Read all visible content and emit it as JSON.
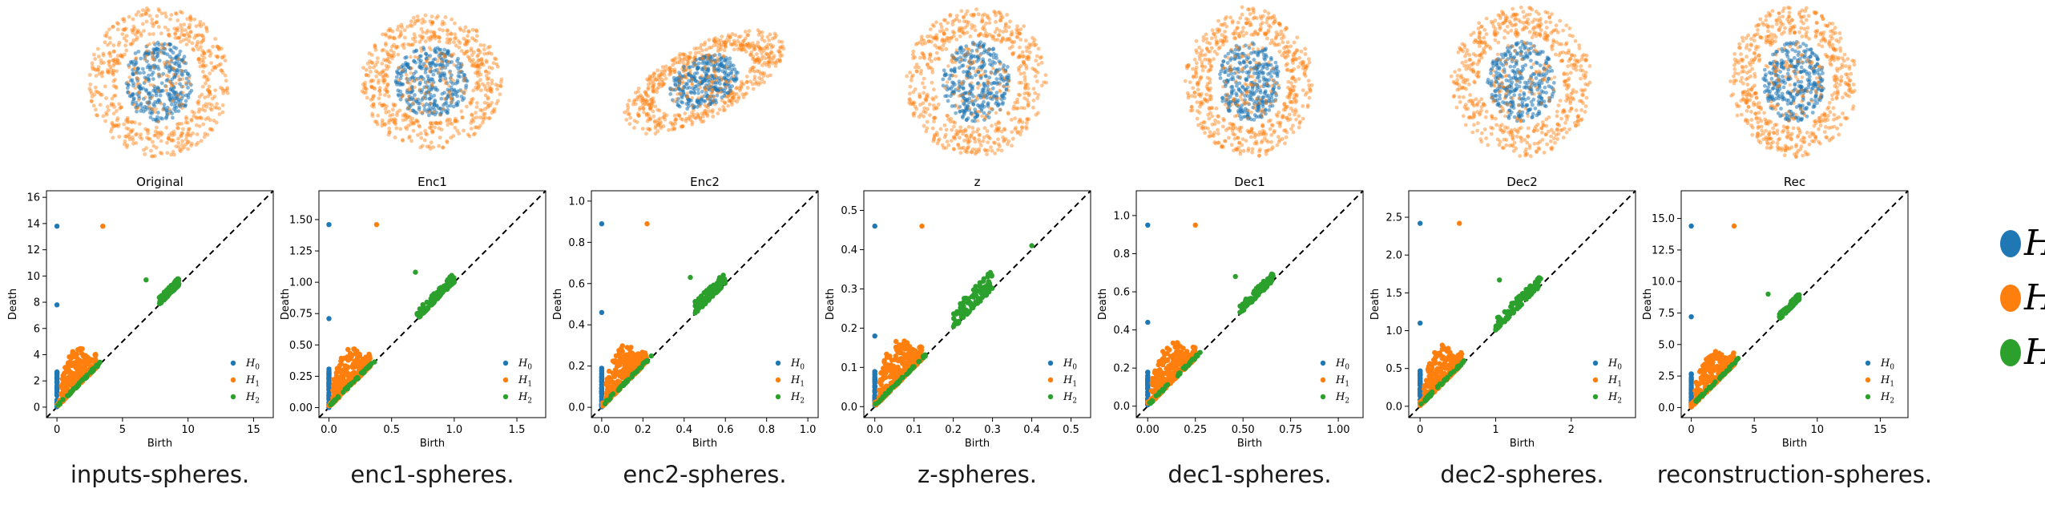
{
  "colors": {
    "h0": "#1f77b4",
    "h1": "#ff7f0e",
    "h2": "#2ca02c",
    "axis": "#000000"
  },
  "axis_labels": {
    "xlabel": "Birth",
    "ylabel": "Death"
  },
  "legend_labels": [
    "H0",
    "H1",
    "H2"
  ],
  "panels": [
    {
      "title": "Original",
      "caption": "inputs-spheres.",
      "cloud_shape": "round",
      "chart_data": {
        "type": "scatter",
        "title": "Original",
        "xlabel": "Birth",
        "ylabel": "Death",
        "xlim": [
          -0.8,
          16.5
        ],
        "ylim": [
          -0.8,
          16.5
        ],
        "xticks": [
          0,
          5,
          10,
          15
        ],
        "yticks": [
          0,
          2,
          4,
          6,
          8,
          10,
          12,
          14,
          16
        ],
        "scale_max": 16,
        "legend": "lower-right",
        "diagonal": "dashed",
        "series": [
          {
            "name": "H0",
            "points": [
              [
                0,
                13.8
              ],
              [
                0,
                7.8
              ]
            ],
            "cluster_range": [
              0,
              2.7
            ]
          },
          {
            "name": "H1",
            "points": [
              [
                3.5,
                13.8
              ]
            ],
            "cluster": {
              "x0": 0.3,
              "x1": 3.0,
              "max_rise": 3.2
            }
          },
          {
            "name": "H2",
            "points": [
              [
                6.8,
                9.7
              ]
            ],
            "cluster": {
              "x0": 7.8,
              "x1": 9.3,
              "max_rise": 0.6
            }
          }
        ]
      }
    },
    {
      "title": "Enc1",
      "caption": "enc1-spheres.",
      "cloud_shape": "round",
      "chart_data": {
        "type": "scatter",
        "title": "Enc1",
        "xlabel": "Birth",
        "ylabel": "Death",
        "xlim": [
          -0.08,
          1.73
        ],
        "ylim": [
          -0.08,
          1.73
        ],
        "xticks": [
          0.0,
          0.5,
          1.0,
          1.5
        ],
        "yticks": [
          0.0,
          0.25,
          0.5,
          0.75,
          1.0,
          1.25,
          1.5
        ],
        "scale_max": 1.6,
        "legend": "lower-right",
        "diagonal": "dashed",
        "series": [
          {
            "name": "H0",
            "points": [
              [
                0,
                1.46
              ],
              [
                0,
                0.71
              ]
            ],
            "cluster_range": [
              0,
              0.31
            ]
          },
          {
            "name": "H1",
            "points": [
              [
                0.38,
                1.46
              ]
            ],
            "cluster": {
              "x0": 0.03,
              "x1": 0.33,
              "max_rise": 0.32
            }
          },
          {
            "name": "H2",
            "points": [
              [
                0.69,
                1.08
              ]
            ],
            "cluster": {
              "x0": 0.7,
              "x1": 1.0,
              "max_rise": 0.08
            }
          }
        ]
      }
    },
    {
      "title": "Enc2",
      "caption": "enc2-spheres.",
      "cloud_shape": "tilted",
      "chart_data": {
        "type": "scatter",
        "title": "Enc2",
        "xlabel": "Birth",
        "ylabel": "Death",
        "xlim": [
          -0.05,
          1.05
        ],
        "ylim": [
          -0.05,
          1.05
        ],
        "xticks": [
          0.0,
          0.2,
          0.4,
          0.6,
          0.8,
          1.0
        ],
        "yticks": [
          0.0,
          0.2,
          0.4,
          0.6,
          0.8,
          1.0
        ],
        "scale_max": 1.0,
        "legend": "lower-right",
        "diagonal": "dashed",
        "series": [
          {
            "name": "H0",
            "points": [
              [
                0,
                0.89
              ],
              [
                0,
                0.46
              ]
            ],
            "cluster_range": [
              0,
              0.19
            ]
          },
          {
            "name": "H1",
            "points": [
              [
                0.22,
                0.89
              ]
            ],
            "cluster": {
              "x0": 0.02,
              "x1": 0.22,
              "max_rise": 0.2
            }
          },
          {
            "name": "H2",
            "points": [
              [
                0.43,
                0.63
              ]
            ],
            "cluster": {
              "x0": 0.45,
              "x1": 0.6,
              "max_rise": 0.06
            }
          }
        ]
      }
    },
    {
      "title": "z",
      "caption": "z-spheres.",
      "cloud_shape": "round",
      "chart_data": {
        "type": "scatter",
        "title": "z",
        "xlabel": "Birth",
        "ylabel": "Death",
        "xlim": [
          -0.028,
          0.55
        ],
        "ylim": [
          -0.028,
          0.55
        ],
        "xticks": [
          0.0,
          0.1,
          0.2,
          0.3,
          0.4,
          0.5
        ],
        "yticks": [
          0.0,
          0.1,
          0.2,
          0.3,
          0.4,
          0.5
        ],
        "scale_max": 0.52,
        "legend": "lower-right",
        "diagonal": "dashed",
        "series": [
          {
            "name": "H0",
            "points": [
              [
                0,
                0.46
              ],
              [
                0,
                0.18
              ]
            ],
            "cluster_range": [
              0,
              0.09
            ]
          },
          {
            "name": "H1",
            "points": [
              [
                0.12,
                0.46
              ]
            ],
            "cluster": {
              "x0": 0.01,
              "x1": 0.12,
              "max_rise": 0.12
            }
          },
          {
            "name": "H2",
            "points": [
              [
                0.4,
                0.41
              ]
            ],
            "cluster": {
              "x0": 0.2,
              "x1": 0.3,
              "max_rise": 0.05
            }
          }
        ]
      }
    },
    {
      "title": "Dec1",
      "caption": "dec1-spheres.",
      "cloud_shape": "round",
      "chart_data": {
        "type": "scatter",
        "title": "Dec1",
        "xlabel": "Birth",
        "ylabel": "Death",
        "xlim": [
          -0.06,
          1.13
        ],
        "ylim": [
          -0.06,
          1.13
        ],
        "xticks": [
          0.0,
          0.25,
          0.5,
          0.75,
          1.0
        ],
        "yticks": [
          0.0,
          0.2,
          0.4,
          0.6,
          0.8,
          1.0
        ],
        "scale_max": 1.1,
        "legend": "lower-right",
        "diagonal": "dashed",
        "series": [
          {
            "name": "H0",
            "points": [
              [
                0,
                0.95
              ],
              [
                0,
                0.44
              ]
            ],
            "cluster_range": [
              0,
              0.18
            ]
          },
          {
            "name": "H1",
            "points": [
              [
                0.25,
                0.95
              ]
            ],
            "cluster": {
              "x0": 0.02,
              "x1": 0.25,
              "max_rise": 0.22
            }
          },
          {
            "name": "H2",
            "points": [
              [
                0.46,
                0.68
              ]
            ],
            "cluster": {
              "x0": 0.48,
              "x1": 0.66,
              "max_rise": 0.05
            }
          }
        ]
      }
    },
    {
      "title": "Dec2",
      "caption": "dec2-spheres.",
      "cloud_shape": "round",
      "chart_data": {
        "type": "scatter",
        "title": "Dec2",
        "xlabel": "Birth",
        "ylabel": "Death",
        "xlim": [
          -0.15,
          2.85
        ],
        "ylim": [
          -0.15,
          2.85
        ],
        "xticks": [
          0,
          1,
          2
        ],
        "yticks": [
          0.0,
          0.5,
          1.0,
          1.5,
          2.0,
          2.5
        ],
        "scale_max": 2.7,
        "legend": "lower-right",
        "diagonal": "dashed",
        "series": [
          {
            "name": "H0",
            "points": [
              [
                0,
                2.42
              ],
              [
                0,
                1.1
              ]
            ],
            "cluster_range": [
              0,
              0.48
            ]
          },
          {
            "name": "H1",
            "points": [
              [
                0.52,
                2.42
              ]
            ],
            "cluster": {
              "x0": 0.05,
              "x1": 0.55,
              "max_rise": 0.55
            }
          },
          {
            "name": "H2",
            "points": [
              [
                1.05,
                1.67
              ]
            ],
            "cluster": {
              "x0": 1.0,
              "x1": 1.6,
              "max_rise": 0.15
            }
          }
        ]
      }
    },
    {
      "title": "Rec",
      "caption": "reconstruction-spheres.",
      "cloud_shape": "round",
      "chart_data": {
        "type": "scatter",
        "title": "Rec",
        "xlabel": "Birth",
        "ylabel": "Death",
        "xlim": [
          -0.8,
          17.2
        ],
        "ylim": [
          -0.8,
          17.2
        ],
        "xticks": [
          0,
          5,
          10,
          15
        ],
        "yticks": [
          0.0,
          2.5,
          5.0,
          7.5,
          10.0,
          12.5,
          15.0
        ],
        "scale_max": 16,
        "legend": "lower-right",
        "diagonal": "dashed",
        "series": [
          {
            "name": "H0",
            "points": [
              [
                0,
                14.4
              ],
              [
                0,
                7.2
              ]
            ],
            "cluster_range": [
              0,
              2.7
            ]
          },
          {
            "name": "H1",
            "points": [
              [
                3.4,
                14.4
              ]
            ],
            "cluster": {
              "x0": 0.3,
              "x1": 3.4,
              "max_rise": 2.8
            }
          },
          {
            "name": "H2",
            "points": [
              [
                6.1,
                9.0
              ]
            ],
            "cluster": {
              "x0": 7.0,
              "x1": 8.6,
              "max_rise": 0.5
            }
          }
        ]
      }
    }
  ]
}
